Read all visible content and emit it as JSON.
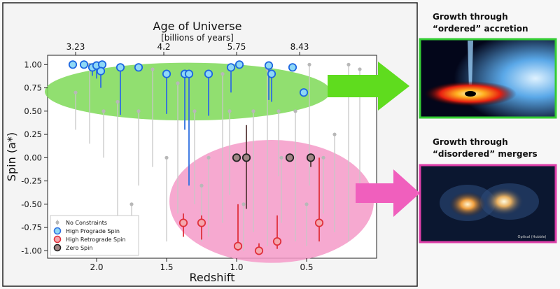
{
  "chart_data": {
    "type": "scatter",
    "title": "Age of Universe",
    "subtitle": "[billions of years]",
    "xlabel": "Redshift",
    "ylabel": "Spin (a*)",
    "xlim": [
      2.35,
      0.0
    ],
    "ylim": [
      -1.08,
      1.1
    ],
    "x_ticks": [
      2.0,
      1.5,
      1.0,
      0.5
    ],
    "x_tick_labels": [
      "2.0",
      "1.5",
      "1.0",
      "0.5"
    ],
    "y_ticks": [
      1.0,
      0.75,
      0.5,
      0.25,
      0.0,
      -0.25,
      -0.5,
      -0.75,
      -1.0
    ],
    "y_tick_labels": [
      "1.00",
      "0.75",
      "0.50",
      "0.25",
      "0.00",
      "-0.25",
      "-0.50",
      "-0.75",
      "-1.00"
    ],
    "top_axis": {
      "ticks": [
        2.15,
        1.52,
        1.0,
        0.55
      ],
      "tick_labels": [
        "3.23",
        "4.2",
        "5.75",
        "8.43"
      ]
    },
    "series": [
      {
        "name": "No Constraints",
        "color": "#b8b8b8",
        "points": [
          {
            "x": 2.05,
            "y": 1.0,
            "lo": 0.15
          },
          {
            "x": 1.95,
            "y": 0.5,
            "lo": 0.0
          },
          {
            "x": 1.85,
            "y": 0.6,
            "lo": -0.8
          },
          {
            "x": 1.7,
            "y": 0.5,
            "lo": -0.3
          },
          {
            "x": 1.6,
            "y": 0.95,
            "lo": -0.1
          },
          {
            "x": 1.5,
            "y": 0.0,
            "lo": -0.9
          },
          {
            "x": 1.42,
            "y": 0.8,
            "lo": -0.6
          },
          {
            "x": 1.3,
            "y": 0.5,
            "lo": -0.5
          },
          {
            "x": 1.2,
            "y": 0.0,
            "lo": -0.85
          },
          {
            "x": 1.1,
            "y": 0.9,
            "lo": -0.7
          },
          {
            "x": 1.05,
            "y": 0.5,
            "lo": -0.4
          },
          {
            "x": 0.88,
            "y": 0.5,
            "lo": -0.8
          },
          {
            "x": 0.78,
            "y": 0.95,
            "lo": -0.95
          },
          {
            "x": 0.68,
            "y": 0.0,
            "lo": -0.7
          },
          {
            "x": 0.58,
            "y": 0.5,
            "lo": -0.9
          },
          {
            "x": 0.48,
            "y": 1.0,
            "lo": -0.3
          },
          {
            "x": 0.38,
            "y": 0.0,
            "lo": -0.6
          },
          {
            "x": 0.3,
            "y": 0.25,
            "lo": -0.8
          },
          {
            "x": 0.2,
            "y": 1.0,
            "lo": -0.9
          },
          {
            "x": 0.12,
            "y": 0.95,
            "lo": -0.5
          },
          {
            "x": 1.75,
            "y": -0.5,
            "lo": -0.95
          },
          {
            "x": 1.25,
            "y": -0.3,
            "lo": -0.9
          },
          {
            "x": 0.95,
            "y": -0.5,
            "lo": -1.0
          },
          {
            "x": 0.5,
            "y": -0.5,
            "lo": -0.95
          },
          {
            "x": 2.15,
            "y": 0.7,
            "lo": 0.3
          },
          {
            "x": 0.7,
            "y": 0.5,
            "lo": -0.2
          }
        ]
      },
      {
        "name": "High Prograde Spin",
        "color": "#2f6fe0",
        "points": [
          {
            "x": 2.17,
            "y": 1.0,
            "lo": 1.0
          },
          {
            "x": 2.09,
            "y": 1.0,
            "lo": 1.0
          },
          {
            "x": 2.03,
            "y": 0.97,
            "lo": 0.88
          },
          {
            "x": 2.0,
            "y": 0.99,
            "lo": 0.85
          },
          {
            "x": 1.96,
            "y": 1.0,
            "lo": 0.9
          },
          {
            "x": 1.97,
            "y": 0.93,
            "lo": 0.75
          },
          {
            "x": 1.83,
            "y": 0.97,
            "lo": 0.46
          },
          {
            "x": 1.7,
            "y": 0.97,
            "lo": 0.94
          },
          {
            "x": 1.5,
            "y": 0.9,
            "lo": 0.47
          },
          {
            "x": 1.37,
            "y": 0.9,
            "lo": 0.3
          },
          {
            "x": 1.34,
            "y": 0.9,
            "lo": -0.3
          },
          {
            "x": 1.2,
            "y": 0.9,
            "lo": 0.45
          },
          {
            "x": 1.04,
            "y": 0.97,
            "lo": 0.7
          },
          {
            "x": 0.98,
            "y": 1.0,
            "lo": 0.97
          },
          {
            "x": 0.77,
            "y": 0.99,
            "lo": 0.62
          },
          {
            "x": 0.75,
            "y": 0.9,
            "lo": 0.6
          },
          {
            "x": 0.6,
            "y": 0.97,
            "lo": 0.95
          },
          {
            "x": 0.52,
            "y": 0.7,
            "lo": 0.68
          }
        ]
      },
      {
        "name": "High Retrograde Spin",
        "color": "#e0303a",
        "points": [
          {
            "x": 1.38,
            "y": -0.7,
            "lo": -0.85,
            "hi": -0.6
          },
          {
            "x": 1.25,
            "y": -0.7,
            "lo": -0.88,
            "hi": -0.62
          },
          {
            "x": 0.99,
            "y": -0.95,
            "lo": -1.0,
            "hi": -0.5
          },
          {
            "x": 0.84,
            "y": -1.0,
            "lo": -1.0,
            "hi": -0.92
          },
          {
            "x": 0.71,
            "y": -0.9,
            "lo": -0.98,
            "hi": -0.62
          },
          {
            "x": 0.41,
            "y": -0.7,
            "lo": -0.9,
            "hi": 0.0
          }
        ]
      },
      {
        "name": "Zero Spin",
        "color": "#5a3a3a",
        "points": [
          {
            "x": 1.0,
            "y": 0.0,
            "lo": 0.0,
            "hi": 0.0
          },
          {
            "x": 0.93,
            "y": 0.0,
            "lo": -0.55,
            "hi": 0.35
          },
          {
            "x": 0.62,
            "y": 0.0,
            "lo": 0.0,
            "hi": 0.0
          },
          {
            "x": 0.47,
            "y": 0.0,
            "lo": -0.1,
            "hi": 0.0
          }
        ]
      }
    ],
    "legend": {
      "placement": "bottom-left",
      "entries": [
        "No Constraints",
        "High Prograde Spin",
        "High Retrograde Spin",
        "Zero Spin"
      ]
    },
    "annotations": [
      {
        "name": "green-ellipse",
        "color": "#7ed957",
        "cx": 1.35,
        "cy": 0.71,
        "rx": 1.02,
        "ry": 0.31
      },
      {
        "name": "pink-ellipse",
        "color": "#f49ac8",
        "cx": 0.75,
        "cy": -0.47,
        "rx": 0.73,
        "ry": 0.66
      }
    ]
  },
  "side_panels": [
    {
      "caption_line1": "Growth through",
      "caption_line2": "“ordered” accretion",
      "border_color": "#33cc33",
      "arrow_color": "#66dd22"
    },
    {
      "caption_line1": "Growth through",
      "caption_line2": "“disordered” mergers",
      "border_color": "#dd3ea8",
      "arrow_color": "#f05fbd",
      "credit": "Optical (Hubble)"
    }
  ]
}
